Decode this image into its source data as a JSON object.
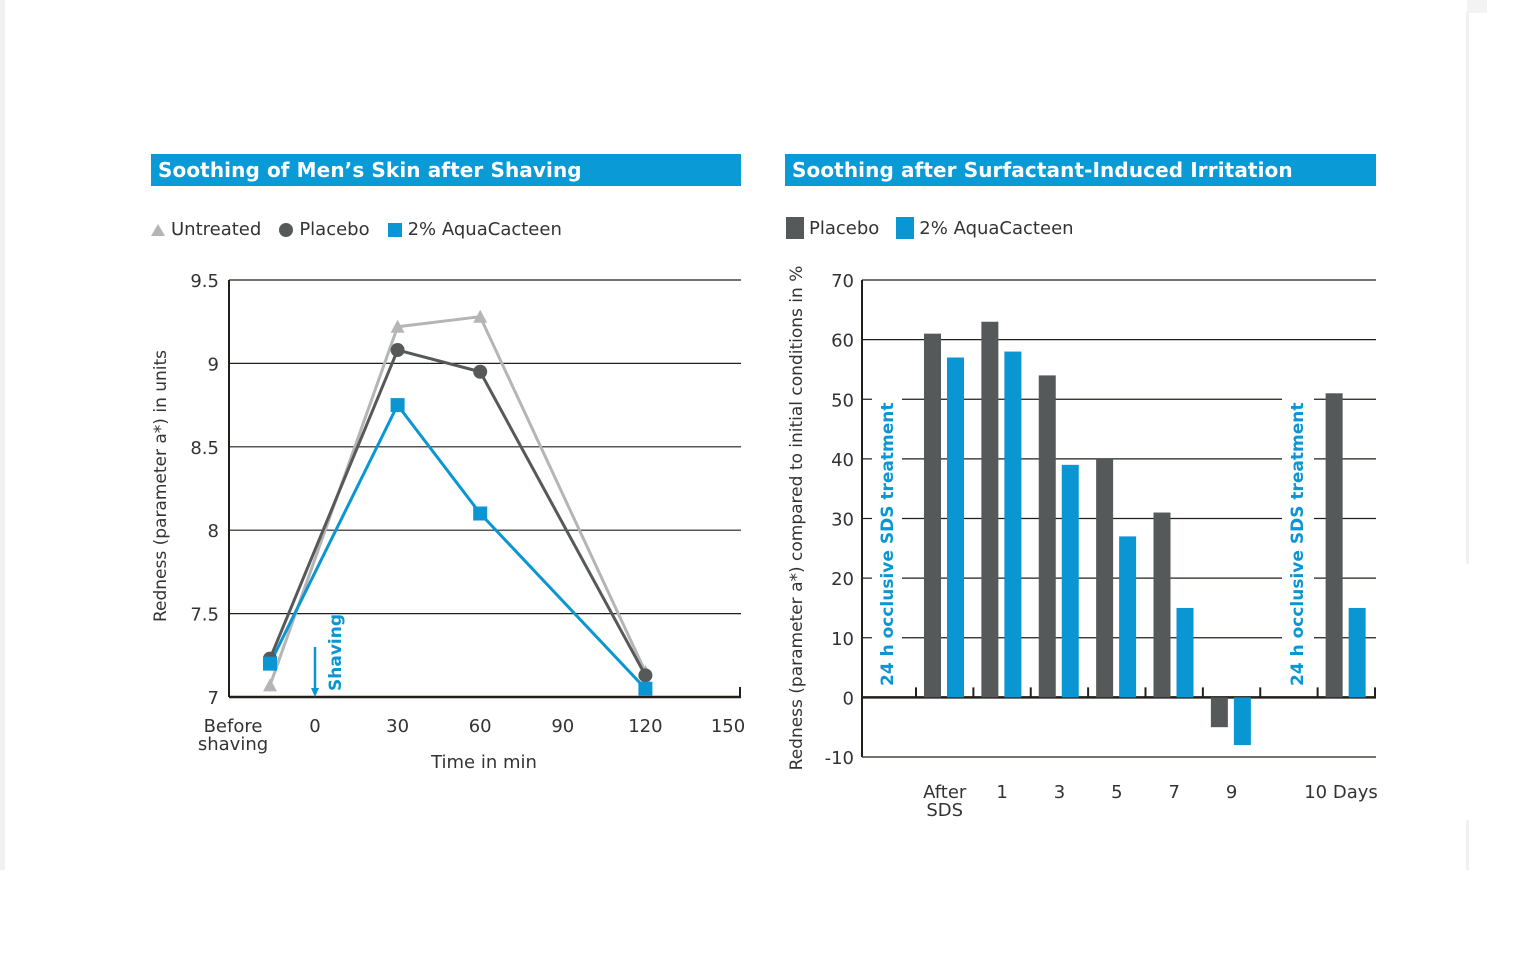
{
  "colors": {
    "header_blue": "#0a9ad6",
    "aquacacteen_blue": "#0a96d2",
    "placebo_gray": "#55595a",
    "untreated_gray": "#b5b5b5",
    "axis": "#231f1a"
  },
  "chart_data": [
    {
      "type": "line",
      "title": "Soothing of Men’s Skin after Shaving",
      "xlabel": "Time in min",
      "ylabel": "Redness (parameter a*) in units",
      "x_tick_labels": [
        "Before shaving",
        "0",
        "30",
        "60",
        "90",
        "120",
        "150"
      ],
      "x_ticks": [
        0,
        30,
        60,
        90,
        120,
        150
      ],
      "before_label_line1": "Before",
      "before_label_line2": "shaving",
      "ylim": [
        7,
        9.5
      ],
      "y_ticks": [
        7,
        7.5,
        8,
        8.5,
        9,
        9.5
      ],
      "y_tick_labels": [
        "7",
        "7.5",
        "8",
        "8.5",
        "9",
        "9.5"
      ],
      "grid": true,
      "legend_position": "top-left",
      "annotation": {
        "text": "Shaving",
        "at_x": 0,
        "arrow": "down"
      },
      "x": [
        "Before shaving",
        30,
        60,
        120
      ],
      "series": [
        {
          "name": "Untreated",
          "marker": "triangle",
          "values": [
            7.07,
            9.22,
            9.28,
            7.15
          ]
        },
        {
          "name": "Placebo",
          "marker": "circle",
          "values": [
            7.23,
            9.08,
            8.95,
            7.13
          ]
        },
        {
          "name": "2% AquaCacteen",
          "marker": "square",
          "values": [
            7.2,
            8.75,
            8.1,
            7.05
          ]
        }
      ]
    },
    {
      "type": "bar",
      "title": "Soothing after Surfactant-Induced Irritation",
      "xlabel": "",
      "ylabel": "Redness (parameter a*) compared to initial conditions in %",
      "categories": [
        "After SDS",
        "1",
        "3",
        "5",
        "7",
        "9",
        "",
        "10 Days"
      ],
      "category_labels": [
        [
          "After",
          "SDS"
        ],
        [
          "1"
        ],
        [
          "3"
        ],
        [
          "5"
        ],
        [
          "7"
        ],
        [
          "9"
        ],
        [
          ""
        ],
        [
          "10 Days"
        ]
      ],
      "ylim": [
        -10,
        70
      ],
      "y_ticks": [
        -10,
        0,
        10,
        20,
        30,
        40,
        50,
        60,
        70
      ],
      "y_tick_labels": [
        "-10",
        "0",
        "10",
        "20",
        "30",
        "40",
        "50",
        "60",
        "70"
      ],
      "grid": true,
      "legend_position": "top-left",
      "annotations": [
        {
          "text": "24 h occlusive SDS treatment",
          "position": "before After SDS"
        },
        {
          "text": "24 h occlusive SDS treatment",
          "position": "before 10 Days"
        }
      ],
      "series": [
        {
          "name": "Placebo",
          "values": [
            61,
            63,
            54,
            40,
            31,
            -5,
            null,
            51
          ]
        },
        {
          "name": "2% AquaCacteen",
          "values": [
            57,
            58,
            39,
            27,
            15,
            -8,
            null,
            15
          ]
        }
      ]
    }
  ],
  "left_panel": {
    "title": "Soothing of Men’s Skin after Shaving",
    "legend": [
      {
        "label": "Untreated",
        "icon": "triangle-icon"
      },
      {
        "label": "Placebo",
        "icon": "circle-icon"
      },
      {
        "label": "2% AquaCacteen",
        "icon": "square-icon"
      }
    ]
  },
  "right_panel": {
    "title": "Soothing after Surfactant-Induced Irritation",
    "legend": [
      {
        "label": "Placebo",
        "icon": "square-icon"
      },
      {
        "label": "2% AquaCacteen",
        "icon": "square-icon"
      }
    ]
  }
}
